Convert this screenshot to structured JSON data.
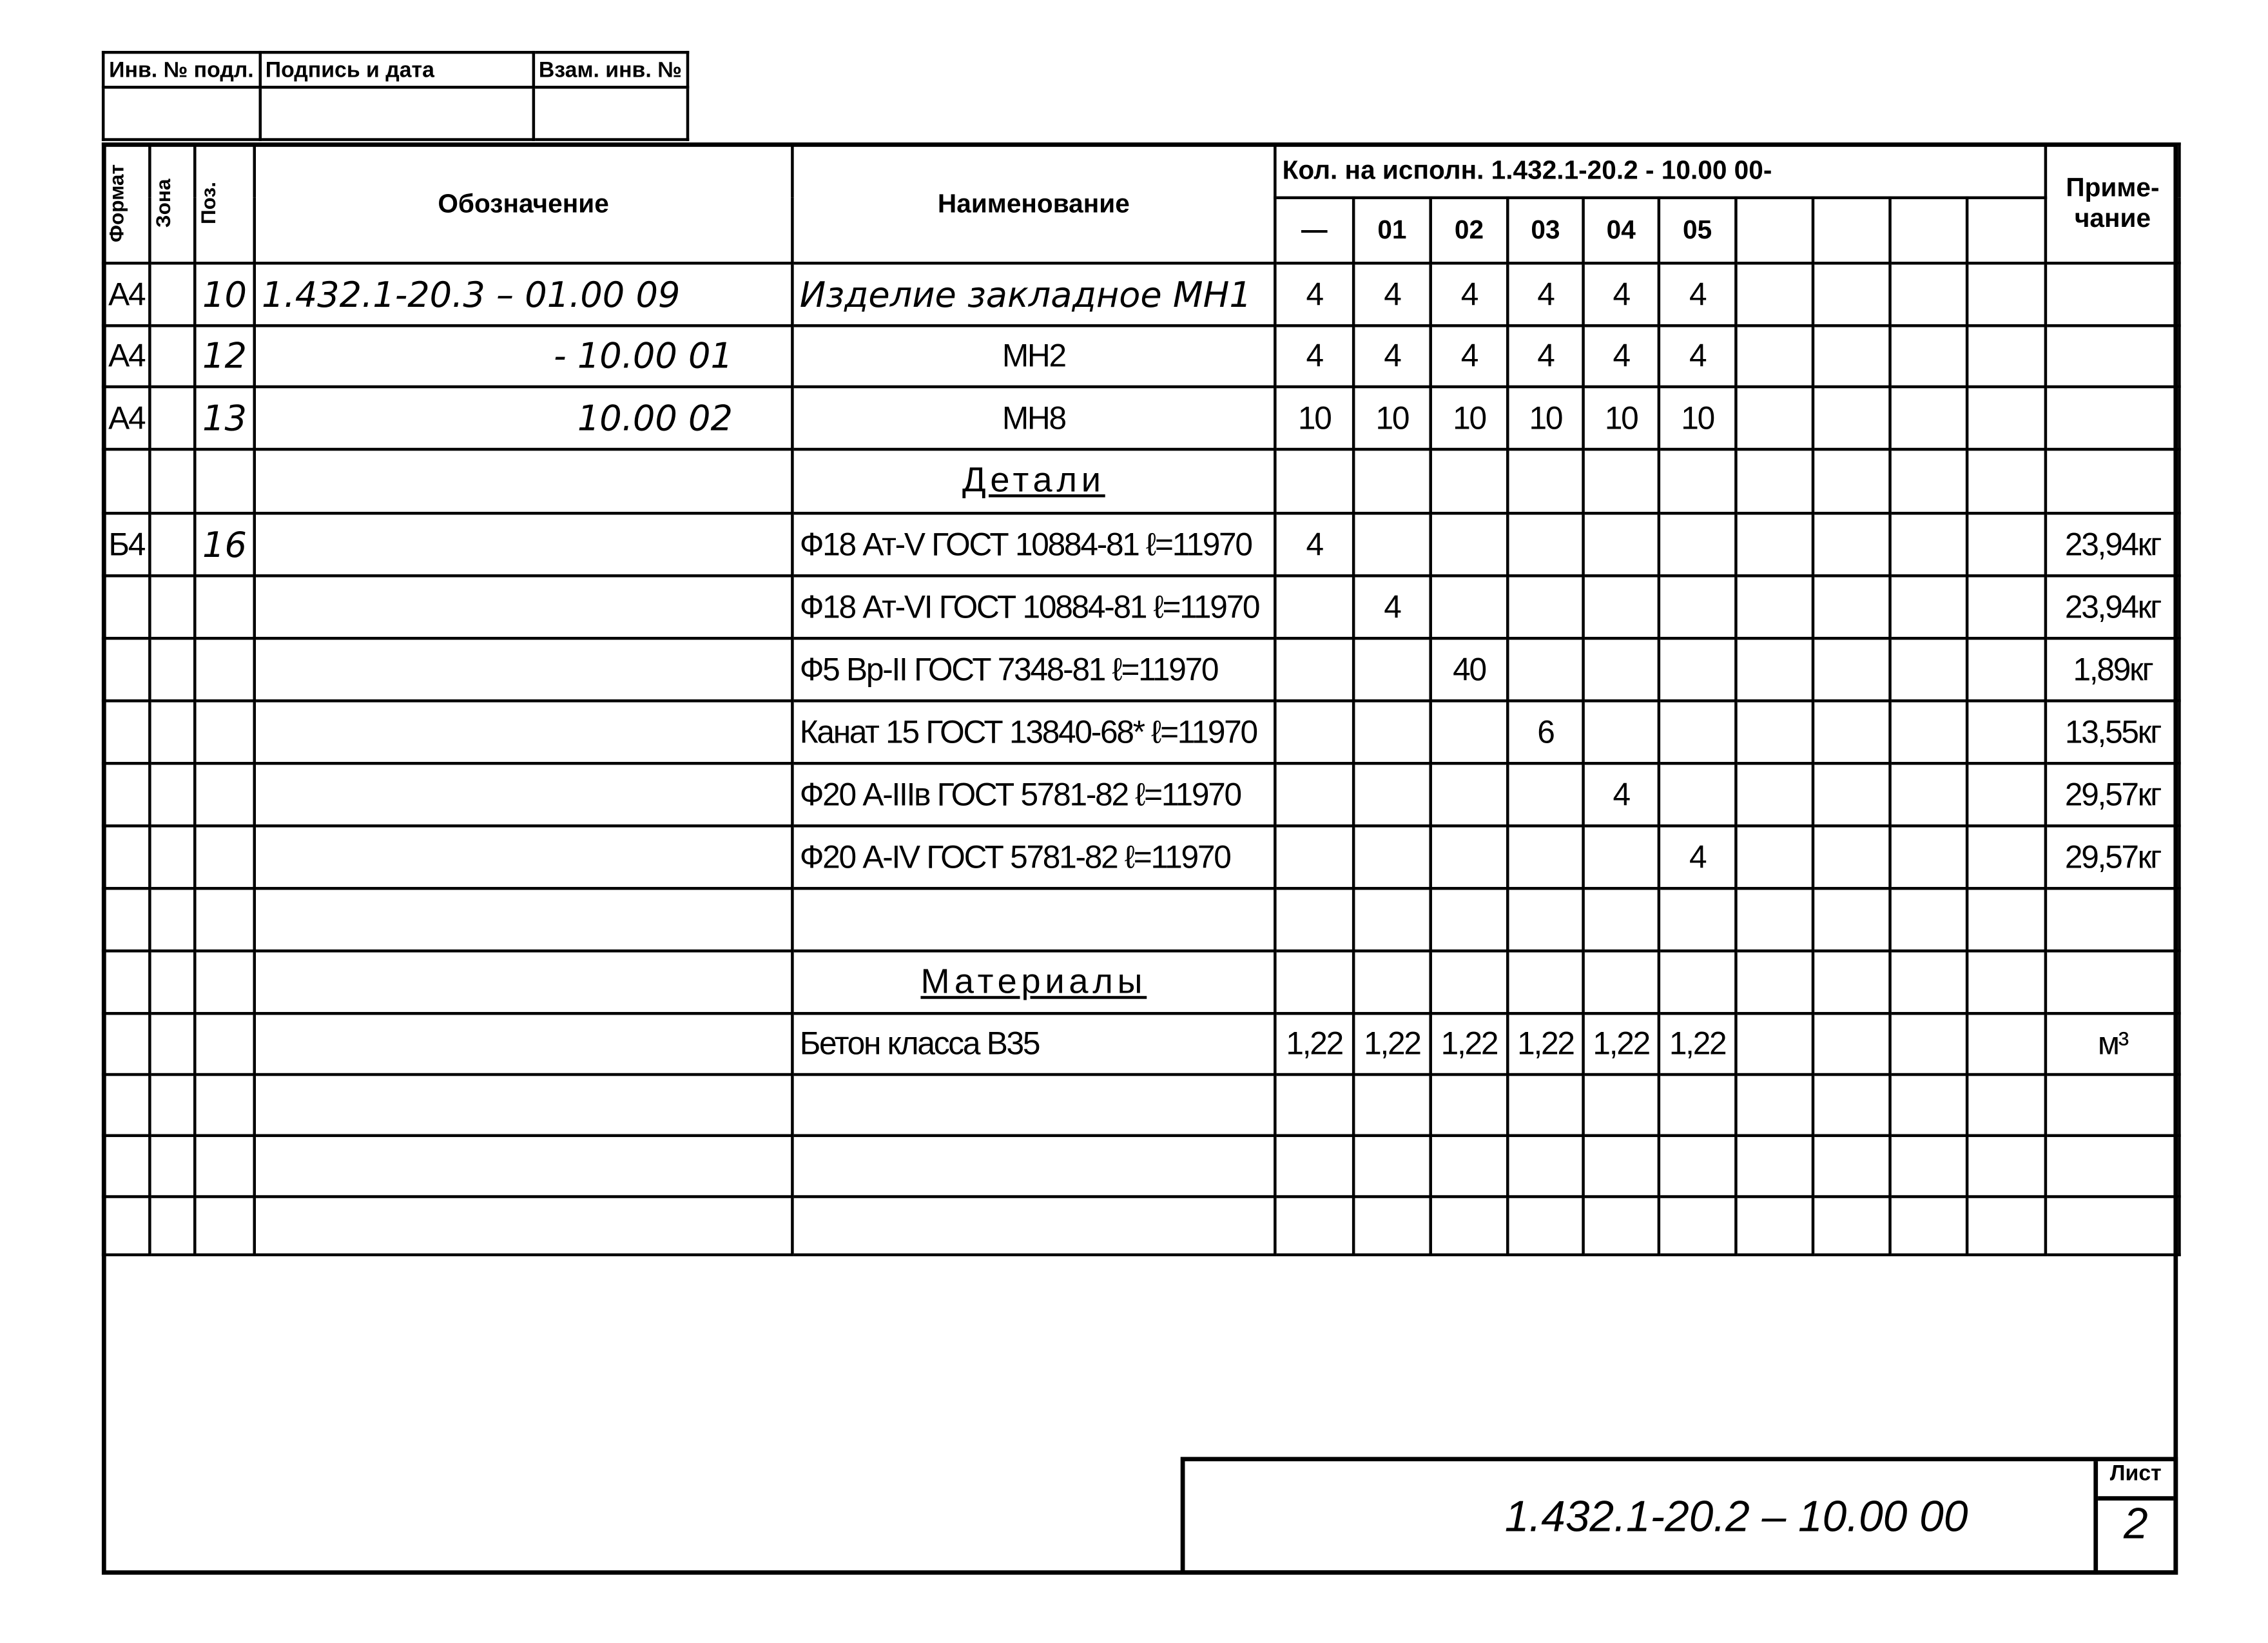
{
  "stamp": {
    "inv_no": "Инв. № подл.",
    "signature_date": "Подпись и дата",
    "replace_inv": "Взам. инв. №"
  },
  "header": {
    "format": "Формат",
    "zone": "Зона",
    "pos": "Поз.",
    "designation": "Обозначение",
    "name": "Наименование",
    "qty_title": "Кол. на исполн. 1.432.1-20.2 - 10.00 00-",
    "note": "Приме-чание",
    "variants": [
      "—",
      "01",
      "02",
      "03",
      "04",
      "05",
      "",
      "",
      "",
      ""
    ]
  },
  "rows": [
    {
      "format": "А4",
      "zone": "",
      "pos": "10",
      "designation": "1.432.1-20.3 – 01.00 09",
      "name": "Изделие закладное МН1",
      "qty": [
        "4",
        "4",
        "4",
        "4",
        "4",
        "4"
      ],
      "note": ""
    },
    {
      "format": "А4",
      "zone": "",
      "pos": "12",
      "designation": "- 10.00 01",
      "name": "МН2",
      "qty": [
        "4",
        "4",
        "4",
        "4",
        "4",
        "4"
      ],
      "note": ""
    },
    {
      "format": "А4",
      "zone": "",
      "pos": "13",
      "designation": "10.00 02",
      "name": "МН8",
      "qty": [
        "10",
        "10",
        "10",
        "10",
        "10",
        "10"
      ],
      "note": ""
    },
    {
      "section": "Детали"
    },
    {
      "format": "Б4",
      "zone": "",
      "pos": "16",
      "designation": "",
      "name": "Ф18 Ат-V ГОСТ 10884-81 ℓ=11970",
      "qty": [
        "4",
        "",
        "",
        "",
        "",
        ""
      ],
      "note": "23,94кг"
    },
    {
      "format": "",
      "zone": "",
      "pos": "",
      "designation": "",
      "name": "Ф18 Ат-VI ГОСТ 10884-81 ℓ=11970",
      "qty": [
        "",
        "4",
        "",
        "",
        "",
        ""
      ],
      "note": "23,94кг"
    },
    {
      "format": "",
      "zone": "",
      "pos": "",
      "designation": "",
      "name": "Ф5 Вр-II ГОСТ 7348-81 ℓ=11970",
      "qty": [
        "",
        "",
        "40",
        "",
        "",
        ""
      ],
      "note": "1,89кг"
    },
    {
      "format": "",
      "zone": "",
      "pos": "",
      "designation": "",
      "name": "Канат 15 ГОСТ 13840-68* ℓ=11970",
      "qty": [
        "",
        "",
        "",
        "6",
        "",
        ""
      ],
      "note": "13,55кг"
    },
    {
      "format": "",
      "zone": "",
      "pos": "",
      "designation": "",
      "name": "Ф20 А-IIIв ГОСТ 5781-82 ℓ=11970",
      "qty": [
        "",
        "",
        "",
        "",
        "4",
        ""
      ],
      "note": "29,57кг"
    },
    {
      "format": "",
      "zone": "",
      "pos": "",
      "designation": "",
      "name": "Ф20 А-IV ГОСТ 5781-82 ℓ=11970",
      "qty": [
        "",
        "",
        "",
        "",
        "",
        "4"
      ],
      "note": "29,57кг"
    },
    {},
    {
      "section": "Материалы"
    },
    {
      "format": "",
      "zone": "",
      "pos": "",
      "designation": "",
      "name": "Бетон класса В35",
      "qty": [
        "1,22",
        "1,22",
        "1,22",
        "1,22",
        "1,22",
        "1,22"
      ],
      "note": "м³"
    },
    {},
    {},
    {}
  ],
  "title_block": {
    "code": "1.432.1-20.2 – 10.00 00",
    "sheet_label": "Лист",
    "sheet_number": "2"
  }
}
